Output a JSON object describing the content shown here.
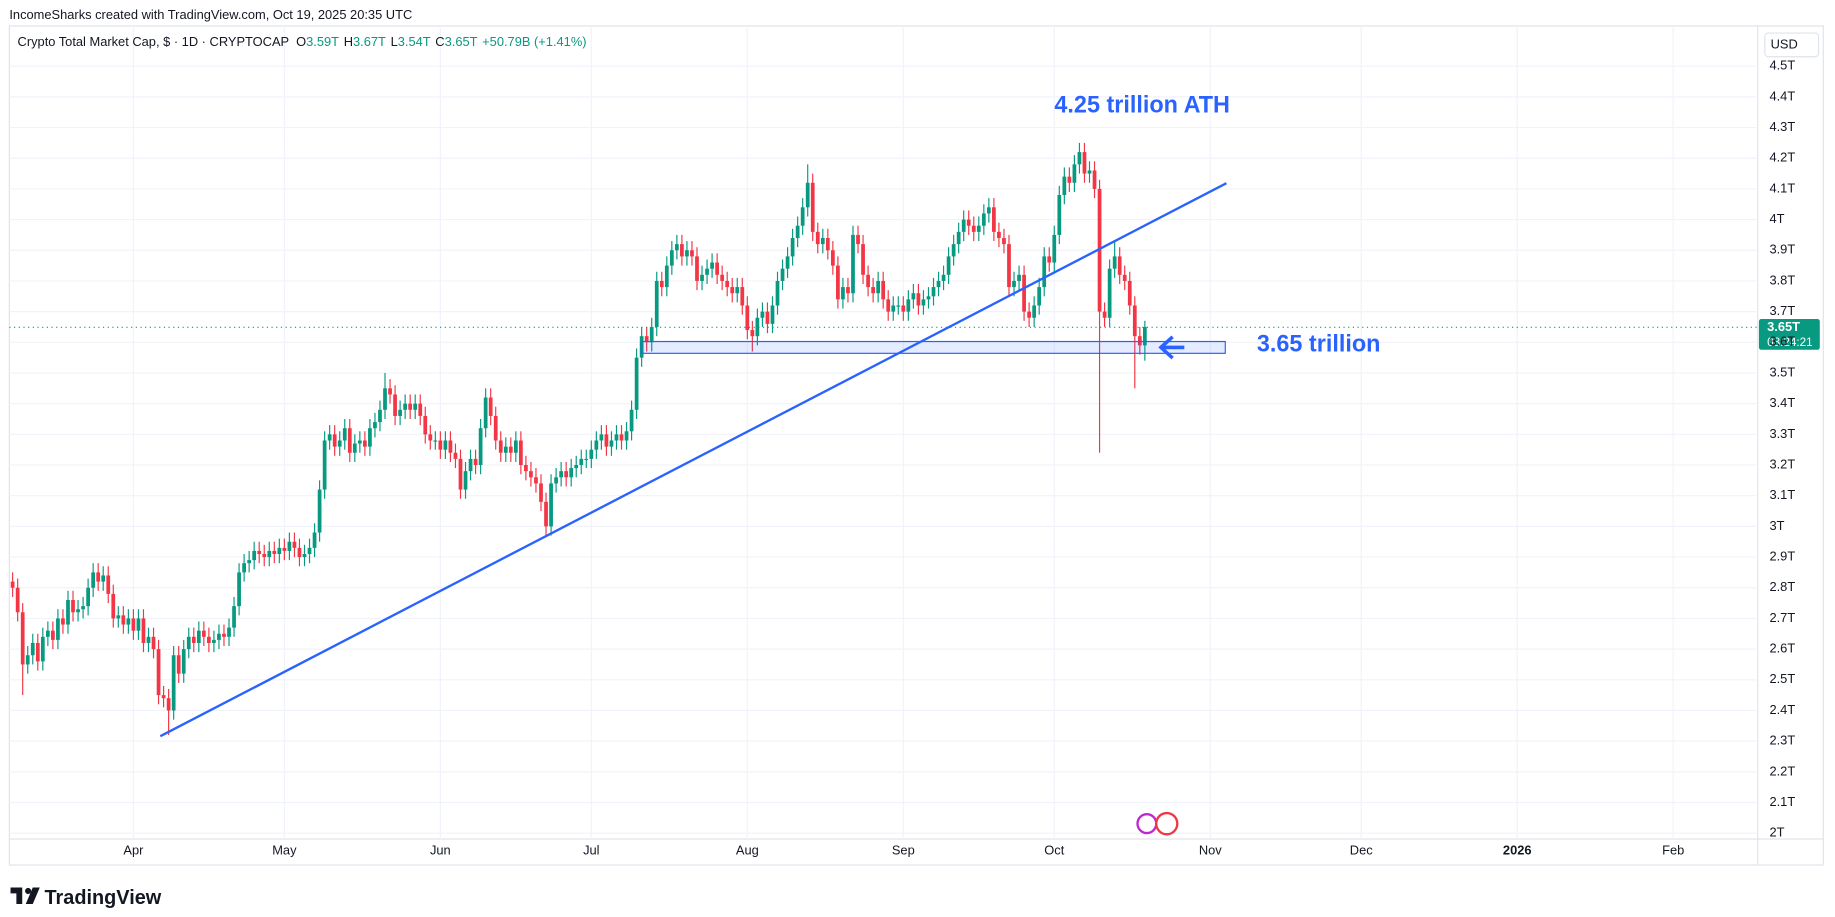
{
  "header": "IncomeSharks created with TradingView.com, Oct 19, 2025 20:35 UTC",
  "branding": "TradingView",
  "legend": {
    "symbol": "Crypto Total Market Cap, $ · 1D · CRYPTOCAP",
    "open_label": "O",
    "open": "3.59T",
    "high_label": "H",
    "high": "3.67T",
    "low_label": "L",
    "low": "3.54T",
    "close_label": "C",
    "close": "3.65T",
    "change": "+50.79B (+1.41%)"
  },
  "currency": "USD",
  "chart_data": {
    "type": "candlestick",
    "up_color": "#089981",
    "down_color": "#f23645",
    "grid": true,
    "annotations": [
      "4.25 trillion ATH",
      "3.65 trillion"
    ],
    "last_price_label": "3.65T",
    "countdown": "03:24:21",
    "xlim": [
      -0.65,
      346.8
    ],
    "xticks": [
      {
        "value": 24,
        "label": "Apr"
      },
      {
        "value": 54,
        "label": "May"
      },
      {
        "value": 85,
        "label": "Jun"
      },
      {
        "value": 115,
        "label": "Jul"
      },
      {
        "value": 146,
        "label": "Aug"
      },
      {
        "value": 177,
        "label": "Sep"
      },
      {
        "value": 207,
        "label": "Oct"
      },
      {
        "value": 238,
        "label": "Nov"
      },
      {
        "value": 268,
        "label": "Dec"
      },
      {
        "value": 299,
        "label": "2026"
      },
      {
        "value": 330,
        "label": "Feb"
      }
    ],
    "ylim": [
      1.981,
      4.631
    ],
    "yticks": [
      {
        "value": 2,
        "label": "2T"
      },
      {
        "value": 2.1,
        "label": "2.1T"
      },
      {
        "value": 2.2,
        "label": "2.2T"
      },
      {
        "value": 2.3,
        "label": "2.3T"
      },
      {
        "value": 2.4,
        "label": "2.4T"
      },
      {
        "value": 2.5,
        "label": "2.5T"
      },
      {
        "value": 2.6,
        "label": "2.6T"
      },
      {
        "value": 2.7,
        "label": "2.7T"
      },
      {
        "value": 2.8,
        "label": "2.8T"
      },
      {
        "value": 2.9,
        "label": "2.9T"
      },
      {
        "value": 3,
        "label": "3T"
      },
      {
        "value": 3.1,
        "label": "3.1T"
      },
      {
        "value": 3.2,
        "label": "3.2T"
      },
      {
        "value": 3.3,
        "label": "3.3T"
      },
      {
        "value": 3.4,
        "label": "3.4T"
      },
      {
        "value": 3.5,
        "label": "3.5T"
      },
      {
        "value": 3.6,
        "label": "3.6T"
      },
      {
        "value": 3.7,
        "label": "3.7T"
      },
      {
        "value": 3.8,
        "label": "3.8T"
      },
      {
        "value": 3.9,
        "label": "3.9T"
      },
      {
        "value": 4,
        "label": "4T"
      },
      {
        "value": 4.1,
        "label": "4.1T"
      },
      {
        "value": 4.2,
        "label": "4.2T"
      },
      {
        "value": 4.3,
        "label": "4.3T"
      },
      {
        "value": 4.4,
        "label": "4.4T"
      },
      {
        "value": 4.5,
        "label": "4.5T"
      }
    ],
    "x": [
      0,
      1,
      2,
      3,
      4,
      5,
      6,
      7,
      8,
      9,
      10,
      11,
      12,
      13,
      14,
      15,
      16,
      17,
      18,
      19,
      20,
      21,
      22,
      23,
      24,
      25,
      26,
      27,
      28,
      29,
      30,
      31,
      32,
      33,
      34,
      35,
      36,
      37,
      38,
      39,
      40,
      41,
      42,
      43,
      44,
      45,
      46,
      47,
      48,
      49,
      50,
      51,
      52,
      53,
      54,
      55,
      56,
      57,
      58,
      59,
      60,
      61,
      62,
      63,
      64,
      65,
      66,
      67,
      68,
      69,
      70,
      71,
      72,
      73,
      74,
      75,
      76,
      77,
      78,
      79,
      80,
      81,
      82,
      83,
      84,
      85,
      86,
      87,
      88,
      89,
      90,
      91,
      92,
      93,
      94,
      95,
      96,
      97,
      98,
      99,
      100,
      101,
      102,
      103,
      104,
      105,
      106,
      107,
      108,
      109,
      110,
      111,
      112,
      113,
      114,
      115,
      116,
      117,
      118,
      119,
      120,
      121,
      122,
      123,
      124,
      125,
      126,
      127,
      128,
      129,
      130,
      131,
      132,
      133,
      134,
      135,
      136,
      137,
      138,
      139,
      140,
      141,
      142,
      143,
      144,
      145,
      146,
      147,
      148,
      149,
      150,
      151,
      152,
      153,
      154,
      155,
      156,
      157,
      158,
      159,
      160,
      161,
      162,
      163,
      164,
      165,
      166,
      167,
      168,
      169,
      170,
      171,
      172,
      173,
      174,
      175,
      176,
      177,
      178,
      179,
      180,
      181,
      182,
      183,
      184,
      185,
      186,
      187,
      188,
      189,
      190,
      191,
      192,
      193,
      194,
      195,
      196,
      197,
      198,
      199,
      200,
      201,
      202,
      203,
      204,
      205,
      206,
      207,
      208,
      209,
      210,
      211,
      212,
      213,
      214,
      215,
      216,
      217,
      218,
      219,
      220,
      221,
      222,
      223,
      224,
      225
    ],
    "open": [
      2.82,
      2.8,
      2.72,
      2.55,
      2.58,
      2.62,
      2.56,
      2.64,
      2.66,
      2.63,
      2.7,
      2.68,
      2.76,
      2.72,
      2.73,
      2.74,
      2.8,
      2.85,
      2.82,
      2.84,
      2.78,
      2.7,
      2.71,
      2.68,
      2.7,
      2.66,
      2.7,
      2.62,
      2.64,
      2.6,
      2.45,
      2.44,
      2.4,
      2.58,
      2.52,
      2.6,
      2.64,
      2.62,
      2.66,
      2.64,
      2.62,
      2.63,
      2.65,
      2.64,
      2.67,
      2.74,
      2.85,
      2.88,
      2.89,
      2.92,
      2.91,
      2.9,
      2.92,
      2.91,
      2.93,
      2.92,
      2.95,
      2.93,
      2.9,
      2.91,
      2.93,
      2.98,
      3.12,
      3.28,
      3.3,
      3.26,
      3.28,
      3.32,
      3.24,
      3.27,
      3.28,
      3.26,
      3.32,
      3.34,
      3.38,
      3.45,
      3.43,
      3.36,
      3.38,
      3.4,
      3.38,
      3.4,
      3.36,
      3.3,
      3.28,
      3.28,
      3.25,
      3.28,
      3.24,
      3.22,
      3.12,
      3.18,
      3.22,
      3.2,
      3.32,
      3.42,
      3.36,
      3.28,
      3.24,
      3.26,
      3.24,
      3.28,
      3.2,
      3.18,
      3.16,
      3.14,
      3.08,
      3.0,
      3.14,
      3.16,
      3.18,
      3.16,
      3.19,
      3.2,
      3.22,
      3.22,
      3.25,
      3.28,
      3.3,
      3.26,
      3.28,
      3.3,
      3.28,
      3.31,
      3.38,
      3.55,
      3.62,
      3.6,
      3.65,
      3.8,
      3.78,
      3.85,
      3.9,
      3.92,
      3.88,
      3.9,
      3.88,
      3.8,
      3.82,
      3.84,
      3.86,
      3.82,
      3.8,
      3.78,
      3.76,
      3.78,
      3.72,
      3.64,
      3.62,
      3.68,
      3.7,
      3.66,
      3.72,
      3.8,
      3.84,
      3.88,
      3.94,
      3.98,
      4.04,
      4.12,
      3.96,
      3.92,
      3.94,
      3.9,
      3.85,
      3.74,
      3.78,
      3.76,
      3.95,
      3.92,
      3.82,
      3.78,
      3.76,
      3.8,
      3.74,
      3.7,
      3.72,
      3.72,
      3.7,
      3.74,
      3.76,
      3.72,
      3.74,
      3.75,
      3.78,
      3.8,
      3.82,
      3.88,
      3.92,
      3.96,
      4.0,
      3.98,
      3.96,
      3.98,
      4.02,
      4.04,
      3.96,
      3.94,
      3.92,
      3.78,
      3.8,
      3.82,
      3.7,
      3.68,
      3.72,
      3.78,
      3.88,
      3.86,
      3.95,
      4.08,
      4.14,
      4.12,
      4.18,
      4.22,
      4.15,
      4.16,
      4.1,
      3.7,
      3.68,
      3.84,
      3.88,
      3.82,
      3.8,
      3.72,
      3.62,
      3.59
    ],
    "high": [
      2.85,
      2.83,
      2.75,
      2.61,
      2.65,
      2.65,
      2.67,
      2.69,
      2.69,
      2.73,
      2.73,
      2.79,
      2.79,
      2.76,
      2.77,
      2.83,
      2.88,
      2.88,
      2.87,
      2.87,
      2.81,
      2.74,
      2.74,
      2.73,
      2.73,
      2.73,
      2.73,
      2.67,
      2.67,
      2.63,
      2.48,
      2.47,
      2.61,
      2.61,
      2.63,
      2.67,
      2.67,
      2.69,
      2.69,
      2.67,
      2.66,
      2.68,
      2.68,
      2.7,
      2.77,
      2.88,
      2.91,
      2.92,
      2.95,
      2.95,
      2.94,
      2.95,
      2.95,
      2.96,
      2.96,
      2.98,
      2.98,
      2.96,
      2.94,
      2.96,
      3.01,
      3.15,
      3.31,
      3.33,
      3.33,
      3.31,
      3.35,
      3.35,
      3.3,
      3.31,
      3.31,
      3.35,
      3.37,
      3.41,
      3.5,
      3.48,
      3.46,
      3.41,
      3.43,
      3.43,
      3.43,
      3.43,
      3.39,
      3.33,
      3.31,
      3.31,
      3.31,
      3.31,
      3.27,
      3.25,
      3.21,
      3.25,
      3.25,
      3.35,
      3.45,
      3.45,
      3.39,
      3.31,
      3.29,
      3.29,
      3.31,
      3.31,
      3.23,
      3.21,
      3.19,
      3.17,
      3.11,
      3.17,
      3.19,
      3.21,
      3.21,
      3.22,
      3.23,
      3.25,
      3.25,
      3.28,
      3.31,
      3.33,
      3.33,
      3.31,
      3.33,
      3.33,
      3.34,
      3.41,
      3.58,
      3.65,
      3.65,
      3.68,
      3.83,
      3.83,
      3.88,
      3.93,
      3.95,
      3.95,
      3.93,
      3.93,
      3.91,
      3.85,
      3.87,
      3.89,
      3.89,
      3.85,
      3.83,
      3.81,
      3.81,
      3.81,
      3.75,
      3.67,
      3.71,
      3.73,
      3.73,
      3.75,
      3.83,
      3.87,
      3.91,
      3.97,
      4.01,
      4.07,
      4.18,
      4.15,
      3.99,
      3.97,
      3.97,
      3.93,
      3.88,
      3.81,
      3.81,
      3.98,
      3.98,
      3.95,
      3.85,
      3.81,
      3.83,
      3.83,
      3.77,
      3.75,
      3.75,
      3.75,
      3.77,
      3.79,
      3.79,
      3.77,
      3.78,
      3.81,
      3.83,
      3.85,
      3.91,
      3.95,
      3.99,
      4.03,
      4.03,
      4.01,
      4.01,
      4.05,
      4.07,
      4.07,
      3.99,
      3.97,
      3.95,
      3.83,
      3.85,
      3.85,
      3.73,
      3.75,
      3.81,
      3.91,
      3.91,
      3.98,
      4.11,
      4.17,
      4.17,
      4.21,
      4.25,
      4.25,
      4.19,
      4.19,
      4.13,
      3.73,
      3.87,
      3.93,
      3.91,
      3.85,
      3.83,
      3.75,
      3.65,
      3.67
    ],
    "low": [
      2.77,
      2.69,
      2.45,
      2.52,
      2.55,
      2.53,
      2.53,
      2.61,
      2.6,
      2.6,
      2.65,
      2.65,
      2.69,
      2.69,
      2.7,
      2.71,
      2.77,
      2.79,
      2.79,
      2.75,
      2.67,
      2.67,
      2.65,
      2.65,
      2.63,
      2.63,
      2.59,
      2.59,
      2.57,
      2.42,
      2.41,
      2.32,
      2.37,
      2.49,
      2.49,
      2.57,
      2.59,
      2.59,
      2.61,
      2.59,
      2.59,
      2.6,
      2.61,
      2.61,
      2.64,
      2.71,
      2.82,
      2.85,
      2.86,
      2.88,
      2.87,
      2.87,
      2.88,
      2.88,
      2.89,
      2.89,
      2.9,
      2.87,
      2.87,
      2.88,
      2.9,
      2.95,
      3.09,
      3.25,
      3.23,
      3.23,
      3.25,
      3.21,
      3.21,
      3.24,
      3.23,
      3.23,
      3.29,
      3.31,
      3.35,
      3.4,
      3.33,
      3.33,
      3.35,
      3.35,
      3.35,
      3.33,
      3.27,
      3.25,
      3.25,
      3.22,
      3.22,
      3.21,
      3.19,
      3.09,
      3.09,
      3.15,
      3.17,
      3.17,
      3.29,
      3.33,
      3.25,
      3.21,
      3.21,
      3.21,
      3.21,
      3.17,
      3.15,
      3.13,
      3.11,
      3.05,
      2.97,
      2.97,
      3.11,
      3.13,
      3.13,
      3.13,
      3.16,
      3.17,
      3.19,
      3.19,
      3.22,
      3.25,
      3.23,
      3.23,
      3.25,
      3.25,
      3.25,
      3.28,
      3.35,
      3.52,
      3.57,
      3.57,
      3.62,
      3.75,
      3.75,
      3.82,
      3.87,
      3.85,
      3.85,
      3.85,
      3.77,
      3.77,
      3.79,
      3.81,
      3.79,
      3.77,
      3.75,
      3.73,
      3.73,
      3.69,
      3.61,
      3.57,
      3.59,
      3.65,
      3.63,
      3.63,
      3.69,
      3.77,
      3.81,
      3.85,
      3.91,
      3.95,
      4.01,
      3.93,
      3.89,
      3.89,
      3.87,
      3.82,
      3.71,
      3.71,
      3.73,
      3.73,
      3.89,
      3.79,
      3.75,
      3.73,
      3.73,
      3.71,
      3.67,
      3.67,
      3.69,
      3.67,
      3.67,
      3.71,
      3.69,
      3.69,
      3.71,
      3.72,
      3.75,
      3.77,
      3.79,
      3.85,
      3.89,
      3.93,
      3.95,
      3.93,
      3.93,
      3.95,
      3.99,
      3.93,
      3.91,
      3.89,
      3.75,
      3.75,
      3.77,
      3.67,
      3.65,
      3.65,
      3.69,
      3.75,
      3.83,
      3.83,
      3.92,
      4.05,
      4.09,
      4.09,
      4.15,
      4.12,
      4.12,
      4.07,
      3.24,
      3.65,
      3.65,
      3.81,
      3.79,
      3.77,
      3.69,
      3.45,
      3.56,
      3.54
    ],
    "close": [
      2.8,
      2.72,
      2.55,
      2.58,
      2.62,
      2.56,
      2.64,
      2.66,
      2.63,
      2.7,
      2.68,
      2.76,
      2.72,
      2.73,
      2.74,
      2.8,
      2.85,
      2.82,
      2.84,
      2.78,
      2.7,
      2.71,
      2.68,
      2.7,
      2.66,
      2.7,
      2.62,
      2.64,
      2.6,
      2.45,
      2.44,
      2.4,
      2.58,
      2.52,
      2.6,
      2.64,
      2.62,
      2.66,
      2.64,
      2.62,
      2.63,
      2.65,
      2.64,
      2.67,
      2.74,
      2.85,
      2.88,
      2.89,
      2.92,
      2.91,
      2.9,
      2.92,
      2.91,
      2.93,
      2.92,
      2.95,
      2.93,
      2.9,
      2.91,
      2.93,
      2.98,
      3.12,
      3.28,
      3.3,
      3.26,
      3.28,
      3.32,
      3.24,
      3.27,
      3.28,
      3.26,
      3.32,
      3.34,
      3.38,
      3.45,
      3.43,
      3.36,
      3.38,
      3.4,
      3.38,
      3.4,
      3.36,
      3.3,
      3.28,
      3.28,
      3.25,
      3.28,
      3.24,
      3.22,
      3.12,
      3.18,
      3.22,
      3.2,
      3.32,
      3.42,
      3.36,
      3.28,
      3.24,
      3.26,
      3.24,
      3.28,
      3.2,
      3.18,
      3.16,
      3.14,
      3.08,
      3.0,
      3.14,
      3.16,
      3.18,
      3.16,
      3.19,
      3.2,
      3.22,
      3.22,
      3.25,
      3.28,
      3.3,
      3.26,
      3.28,
      3.3,
      3.28,
      3.31,
      3.38,
      3.55,
      3.62,
      3.6,
      3.65,
      3.8,
      3.78,
      3.85,
      3.9,
      3.92,
      3.88,
      3.9,
      3.88,
      3.8,
      3.82,
      3.84,
      3.86,
      3.82,
      3.8,
      3.78,
      3.76,
      3.78,
      3.72,
      3.64,
      3.62,
      3.68,
      3.7,
      3.66,
      3.72,
      3.8,
      3.84,
      3.88,
      3.94,
      3.98,
      4.04,
      4.12,
      3.96,
      3.92,
      3.94,
      3.9,
      3.85,
      3.74,
      3.78,
      3.76,
      3.95,
      3.92,
      3.82,
      3.78,
      3.76,
      3.8,
      3.74,
      3.7,
      3.72,
      3.72,
      3.7,
      3.74,
      3.76,
      3.72,
      3.74,
      3.75,
      3.78,
      3.8,
      3.82,
      3.88,
      3.92,
      3.96,
      4.0,
      3.98,
      3.96,
      3.98,
      4.02,
      4.04,
      3.96,
      3.94,
      3.92,
      3.78,
      3.8,
      3.82,
      3.7,
      3.68,
      3.72,
      3.78,
      3.88,
      3.86,
      3.95,
      4.08,
      4.14,
      4.12,
      4.18,
      4.22,
      4.15,
      4.16,
      4.1,
      3.7,
      3.68,
      3.84,
      3.88,
      3.82,
      3.8,
      3.72,
      3.62,
      3.59,
      3.65
    ]
  }
}
